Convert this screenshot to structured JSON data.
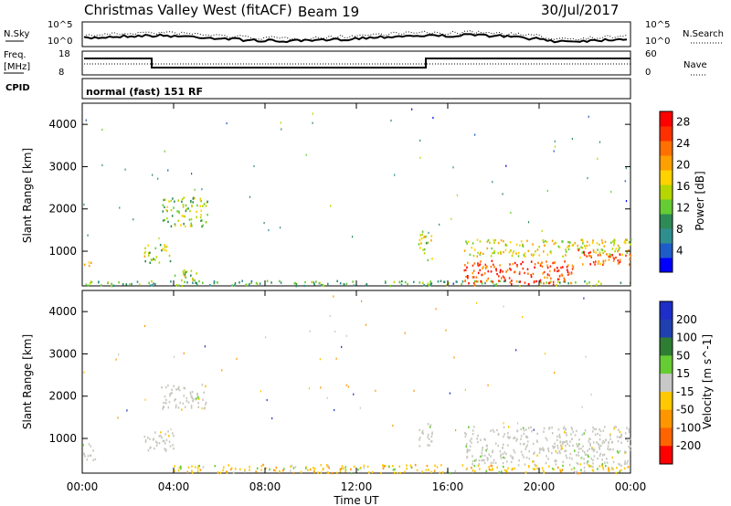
{
  "header": {
    "title": "Christmas Valley West (fitACF)",
    "beam": "Beam 19",
    "date": "30/Jul/2017"
  },
  "noise_panel": {
    "left_label": "N.Sky",
    "right_label": "N.Search",
    "left_ticks": [
      "10^5",
      "10^0"
    ],
    "right_ticks": [
      "10^5",
      "10^0"
    ]
  },
  "freq_panel": {
    "left_label_line1": "Freq.",
    "left_label_line2": "[MHz]",
    "right_label": "Nave",
    "left_ticks": [
      "18",
      "8"
    ],
    "right_ticks": [
      "60",
      "0"
    ],
    "cpid_label": "CPID",
    "mode_text": "normal (fast) 151 RF"
  },
  "chart_data": [
    {
      "type": "heatmap",
      "quantity": "Power",
      "x_axis": {
        "label": "Time UT",
        "ticks": [
          "00:00",
          "04:00",
          "08:00",
          "12:00",
          "16:00",
          "20:00",
          "00:00"
        ],
        "range_hours": [
          0,
          24
        ]
      },
      "y_axis": {
        "label": "Slant Range [km]",
        "ticks": [
          1000,
          2000,
          3000,
          4000
        ],
        "range": [
          180,
          4500
        ]
      },
      "colorbar": {
        "label": "Power [dB]",
        "ticks": [
          4,
          8,
          12,
          16,
          20,
          24,
          28
        ],
        "range": [
          0,
          30
        ]
      },
      "colors": [
        "#0000ff",
        "#1e5cc8",
        "#2f8f8f",
        "#2e8b57",
        "#66cc33",
        "#b5d600",
        "#ffd200",
        "#ffa000",
        "#ff7000",
        "#ff3000",
        "#ff0000"
      ],
      "regions": [
        {
          "t": [
            0.0,
            0.4
          ],
          "r": [
            600,
            780
          ],
          "level": 0.75
        },
        {
          "t": [
            0.0,
            24.0
          ],
          "r": [
            200,
            320
          ],
          "level": 0.35
        },
        {
          "t": [
            2.7,
            3.9
          ],
          "r": [
            750,
            1200
          ],
          "level": 0.5
        },
        {
          "t": [
            3.5,
            5.5
          ],
          "r": [
            1600,
            2300
          ],
          "level": 0.45
        },
        {
          "t": [
            4.0,
            5.0
          ],
          "r": [
            300,
            600
          ],
          "level": 0.5
        },
        {
          "t": [
            14.7,
            15.3
          ],
          "r": [
            800,
            1500
          ],
          "level": 0.5
        },
        {
          "t": [
            16.7,
            24.0
          ],
          "r": [
            900,
            1300
          ],
          "level": 0.55
        },
        {
          "t": [
            16.7,
            21.5
          ],
          "r": [
            220,
            800
          ],
          "level": 0.85
        },
        {
          "t": [
            21.5,
            24.0
          ],
          "r": [
            700,
            1050
          ],
          "level": 0.8
        }
      ]
    },
    {
      "type": "heatmap",
      "quantity": "Velocity",
      "x_axis": {
        "label": "Time UT",
        "ticks": [
          "00:00",
          "04:00",
          "08:00",
          "12:00",
          "16:00",
          "20:00",
          "00:00"
        ],
        "range_hours": [
          0,
          24
        ]
      },
      "y_axis": {
        "label": "Slant Range [km]",
        "ticks": [
          1000,
          2000,
          3000,
          4000
        ],
        "range": [
          180,
          4500
        ]
      },
      "colorbar": {
        "label": "Velocity [m s^-1]",
        "ticks": [
          "200",
          "100",
          "50",
          "15",
          "-15",
          "-50",
          "-100",
          "-200"
        ]
      },
      "colors": {
        "ground_scatter": "#c8c8c0",
        "toward_strong": "#1e2ec8",
        "toward": "#2e7d32",
        "weak_pos": "#66cc33",
        "near_zero": "#c8c8c8",
        "weak_neg": "#ffc800",
        "away": "#ff9600",
        "away_strong": "#ff6400",
        "away_max": "#ff0000"
      },
      "regions": [
        {
          "t": [
            0.0,
            0.6
          ],
          "r": [
            500,
            900
          ],
          "kind": "grey"
        },
        {
          "t": [
            2.7,
            4.0
          ],
          "r": [
            700,
            1200
          ],
          "kind": "grey"
        },
        {
          "t": [
            3.4,
            5.4
          ],
          "r": [
            1700,
            2300
          ],
          "kind": "grey"
        },
        {
          "t": [
            4.0,
            24.0
          ],
          "r": [
            200,
            400
          ],
          "kind": "yellow"
        },
        {
          "t": [
            14.7,
            15.3
          ],
          "r": [
            800,
            1400
          ],
          "kind": "grey"
        },
        {
          "t": [
            16.7,
            24.0
          ],
          "r": [
            400,
            1300
          ],
          "kind": "grey"
        }
      ]
    }
  ]
}
